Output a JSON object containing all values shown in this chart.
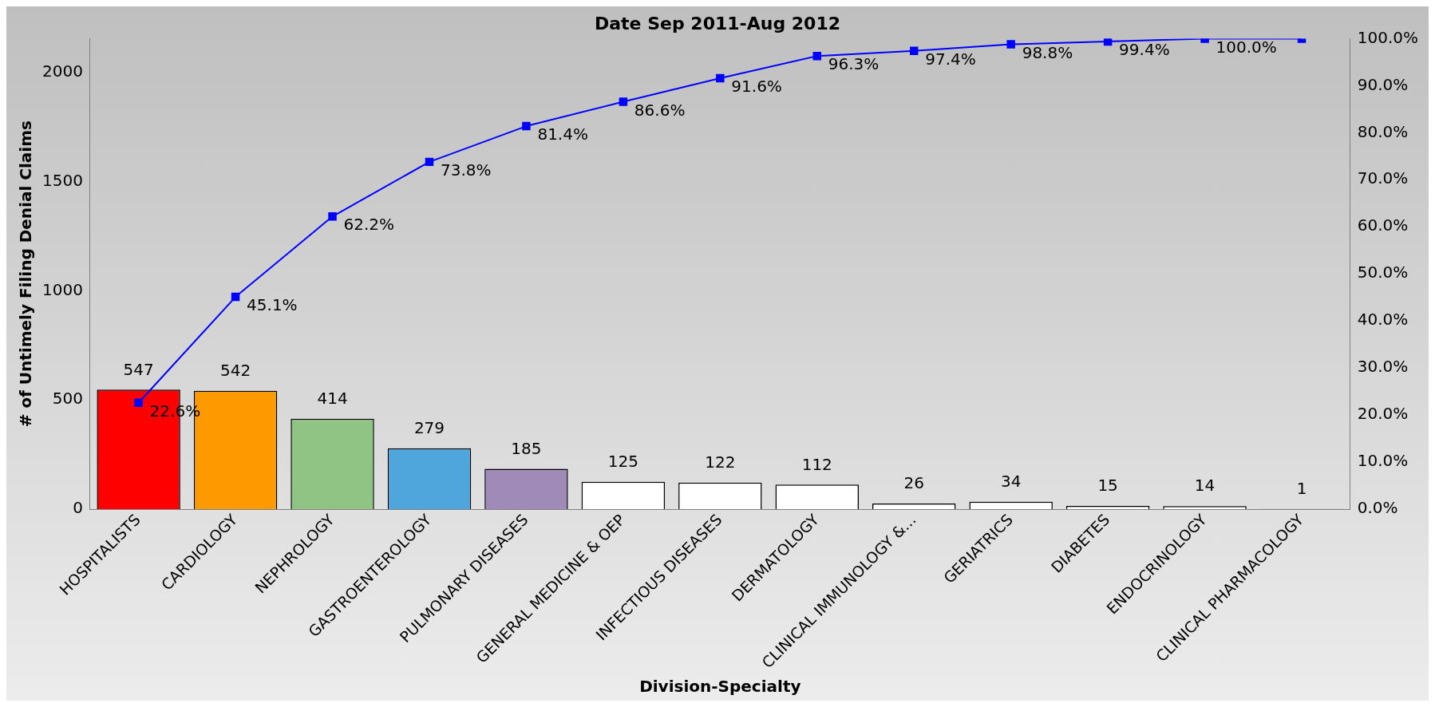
{
  "chart_data": {
    "type": "bar",
    "title": "Date Sep 2011-Aug 2012",
    "xlabel": "Division-Specialty",
    "ylabel": "# of Untimely Filing Denial Claims",
    "categories": [
      "HOSPITALISTS",
      "CARDIOLOGY",
      "NEPHROLOGY",
      "GASTROENTEROLOGY",
      "PULMONARY DISEASES",
      "GENERAL MEDICINE & OEP",
      "INFECTIOUS DISEASES",
      "DERMATOLOGY",
      "CLINICAL IMMUNOLOGY &...",
      "GERIATRICS",
      "DIABETES",
      "ENDOCRINOLOGY",
      "CLINICAL PHARMACOLOGY"
    ],
    "series": [
      {
        "values": [
          547,
          542,
          414,
          279,
          185,
          125,
          122,
          112,
          26,
          34,
          15,
          14,
          1
        ],
        "colors": [
          "#ff0000",
          "#ff9900",
          "#8fc485",
          "#4fa6dc",
          "#a08ab8",
          "#ffffff",
          "#ffffff",
          "#ffffff",
          "#ffffff",
          "#ffffff",
          "#ffffff",
          "#ffffff",
          "#ffffff"
        ]
      },
      {
        "type": "line",
        "axis": "y2",
        "color": "#0000ff",
        "marker": "square",
        "values": [
          22.6,
          45.1,
          62.2,
          73.8,
          81.4,
          86.6,
          91.6,
          96.3,
          97.4,
          98.8,
          99.4,
          100.0,
          100.0
        ],
        "value_labels": [
          "22.6%",
          "45.1%",
          "62.2%",
          "73.8%",
          "81.4%",
          "86.6%",
          "91.6%",
          "96.3%",
          "97.4%",
          "98.8%",
          "99.4%",
          "100.0%",
          null
        ]
      }
    ],
    "data_labels": true,
    "ylim": [
      0,
      2155
    ],
    "yticks": [
      0,
      500,
      1000,
      1500,
      2000
    ],
    "y2lim": [
      0,
      100
    ],
    "y2ticks": [
      {
        "value": 0,
        "label": "0.0%"
      },
      {
        "value": 10,
        "label": "10.0%"
      },
      {
        "value": 20,
        "label": "20.0%"
      },
      {
        "value": 30,
        "label": "30.0%"
      },
      {
        "value": 40,
        "label": "40.0%"
      },
      {
        "value": 50,
        "label": "50.0%"
      },
      {
        "value": 60,
        "label": "60.0%"
      },
      {
        "value": 70,
        "label": "70.0%"
      },
      {
        "value": 80,
        "label": "80.0%"
      },
      {
        "value": 90,
        "label": "90.0%"
      },
      {
        "value": 100,
        "label": "100.0%"
      }
    ],
    "grid": false,
    "legend": false
  }
}
